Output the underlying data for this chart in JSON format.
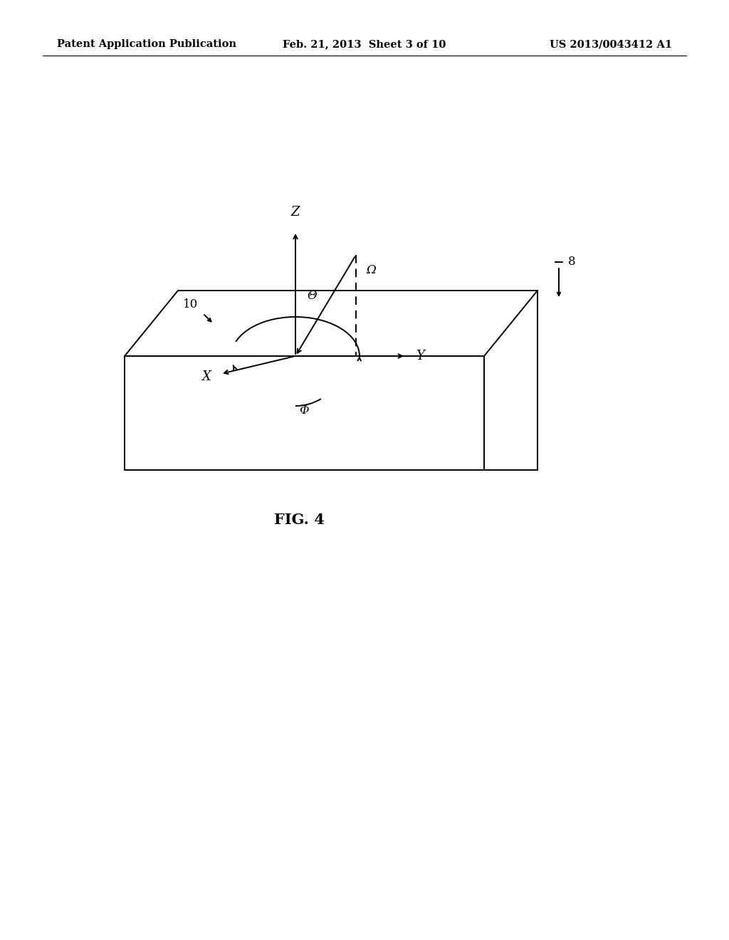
{
  "header_left": "Patent Application Publication",
  "header_center": "Feb. 21, 2013  Sheet 3 of 10",
  "header_right": "US 2013/0043412 A1",
  "fig_label": "FIG. 4",
  "background": "#ffffff",
  "line_color": "#000000",
  "text_color": "#000000",
  "header_fontsize": 10.5,
  "label_fontsize": 12,
  "fig_label_fontsize": 15
}
